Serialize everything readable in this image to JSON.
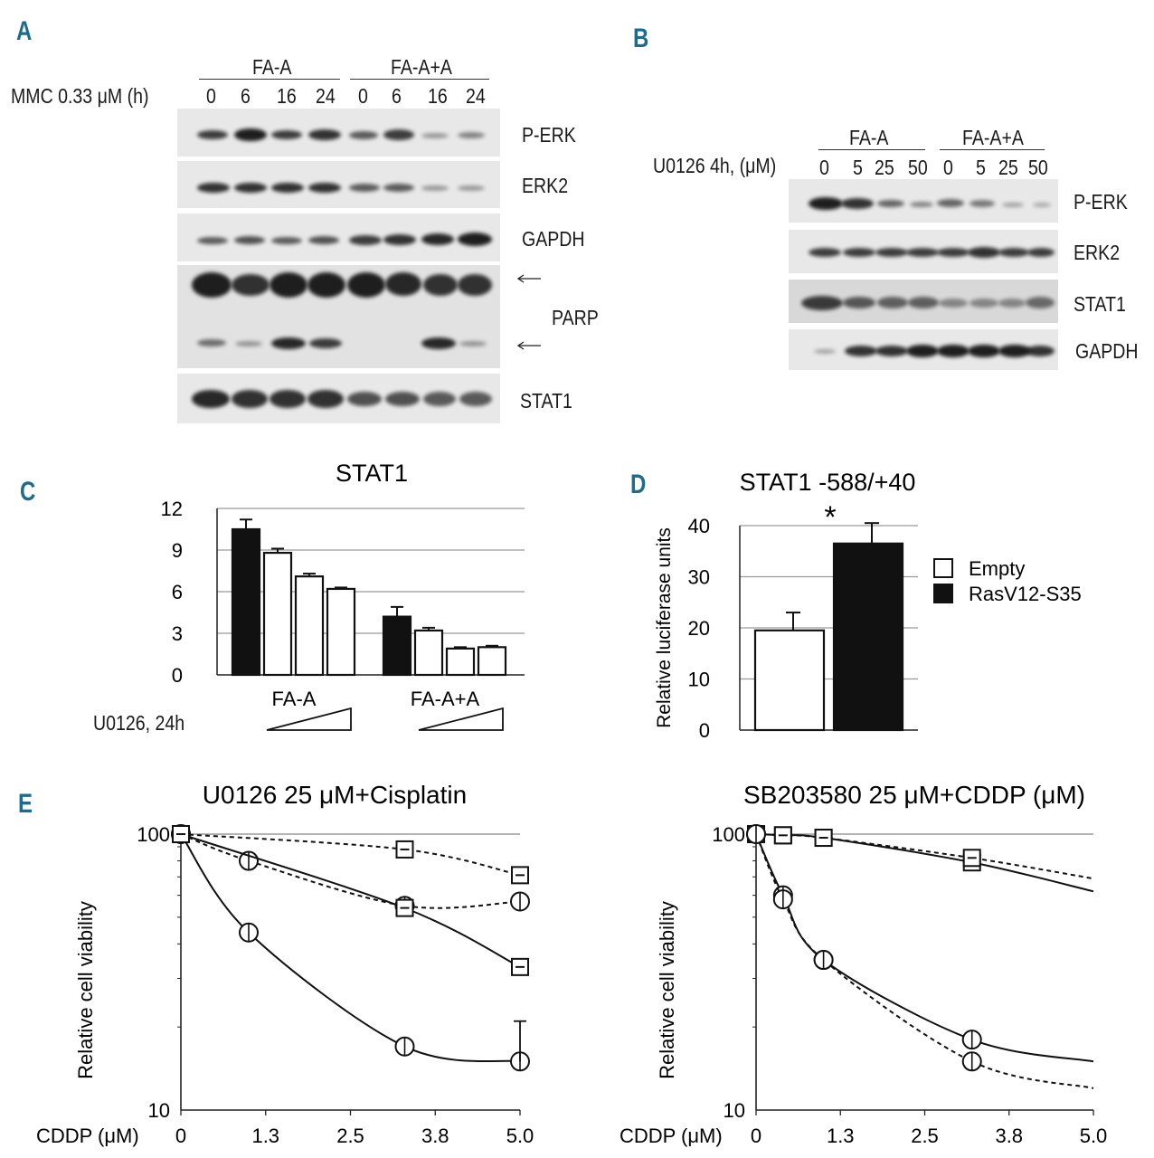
{
  "panels": {
    "A": {
      "letter": "A",
      "groups": [
        "FA-A",
        "FA-A+A"
      ],
      "treatment_label": "MMC 0.33 μM (h)",
      "timepoints": [
        "0",
        "6",
        "16",
        "24",
        "0",
        "6",
        "16",
        "24"
      ],
      "blots": [
        "P-ERK",
        "ERK2",
        "GAPDH",
        "PARP",
        "STAT1"
      ]
    },
    "B": {
      "letter": "B",
      "groups": [
        "FA-A",
        "FA-A+A"
      ],
      "treatment_label": "U0126 4h, (μM)",
      "doses": [
        "0",
        "5",
        "25",
        "50",
        "0",
        "5",
        "25",
        "50"
      ],
      "blots": [
        "P-ERK",
        "ERK2",
        "STAT1",
        "GAPDH"
      ]
    },
    "C": {
      "letter": "C",
      "treatment_label": "U0126, 24h"
    },
    "D": {
      "letter": "D",
      "significance": "*"
    },
    "E": {
      "letter": "E"
    }
  },
  "chart_data": [
    {
      "id": "C",
      "type": "bar",
      "title": "STAT1",
      "groups": [
        "FA-A",
        "FA-A+A"
      ],
      "series_fill": [
        "black",
        "white",
        "white",
        "white"
      ],
      "values": [
        [
          10.5,
          8.8,
          7.1,
          6.2
        ],
        [
          4.2,
          3.2,
          1.9,
          2.0
        ]
      ],
      "errors": [
        [
          0.7,
          0.3,
          0.2,
          0.1
        ],
        [
          0.7,
          0.2,
          0.1,
          0.1
        ]
      ],
      "yticks": [
        "0",
        "3",
        "6",
        "9",
        "12"
      ],
      "ylim": [
        0,
        12
      ],
      "xlabel": "",
      "ylabel": ""
    },
    {
      "id": "D",
      "type": "bar",
      "title": "STAT1 -588/+40",
      "categories": [
        "Empty",
        "RasV12-S35"
      ],
      "values": [
        19.5,
        36.5
      ],
      "errors": [
        3.5,
        4.0
      ],
      "legend": [
        "Empty",
        "RasV12-S35"
      ],
      "ylabel": "Relative luciferase units",
      "yticks": [
        "0",
        "10",
        "20",
        "30",
        "40"
      ],
      "ylim": [
        0,
        40
      ]
    },
    {
      "id": "E-left",
      "type": "line",
      "title": "U0126 25 μM+Cisplatin",
      "xlabel": "CDDP (μM)",
      "ylabel": "Relative cell viability",
      "xticks": [
        "0",
        "1.3",
        "2.5",
        "3.8",
        "5.0"
      ],
      "yticks": [
        "10",
        "100"
      ],
      "yscale": "log",
      "xlim": [
        0,
        5
      ],
      "ylim": [
        10,
        100
      ],
      "series": [
        {
          "name": "circle-solid",
          "marker": "circle",
          "line": "solid",
          "x": [
            0,
            1.0,
            3.3,
            5.0
          ],
          "y": [
            100,
            44,
            17,
            15
          ]
        },
        {
          "name": "circle-dashed",
          "marker": "circle",
          "line": "dashed",
          "x": [
            0,
            1.0,
            3.3,
            5.0
          ],
          "y": [
            100,
            80,
            55,
            57
          ]
        },
        {
          "name": "square-solid",
          "marker": "square",
          "line": "solid",
          "x": [
            0,
            3.3,
            5.0
          ],
          "y": [
            100,
            54,
            33
          ]
        },
        {
          "name": "square-dashed",
          "marker": "square",
          "line": "dashed",
          "x": [
            0,
            3.3,
            5.0
          ],
          "y": [
            100,
            88,
            71
          ]
        }
      ]
    },
    {
      "id": "E-right",
      "type": "line",
      "title": "SB203580 25 μM+CDDP (μM)",
      "xlabel": "CDDP (μM)",
      "ylabel": "Relative cell viability",
      "xticks": [
        "0",
        "1.3",
        "2.5",
        "3.8",
        "5.0"
      ],
      "yticks": [
        "10",
        "100"
      ],
      "yscale": "log",
      "xlim": [
        0,
        5
      ],
      "ylim": [
        10,
        100
      ],
      "series": [
        {
          "name": "square-solid",
          "marker": "square",
          "line": "solid",
          "x": [
            0,
            0.4,
            1.0,
            3.2
          ],
          "y": [
            100,
            99,
            97,
            79
          ]
        },
        {
          "name": "square-dashed",
          "marker": "square",
          "line": "dashed",
          "x": [
            0,
            0.4,
            1.0,
            3.2
          ],
          "y": [
            100,
            99,
            97,
            82
          ]
        },
        {
          "name": "circle-solid",
          "marker": "circle",
          "line": "solid",
          "x": [
            0,
            0.4,
            1.0,
            3.2
          ],
          "y": [
            100,
            60,
            35,
            18
          ]
        },
        {
          "name": "circle-dashed",
          "marker": "circle",
          "line": "dashed",
          "x": [
            0,
            0.4,
            1.0,
            3.2
          ],
          "y": [
            100,
            58,
            35,
            15
          ]
        }
      ]
    }
  ]
}
